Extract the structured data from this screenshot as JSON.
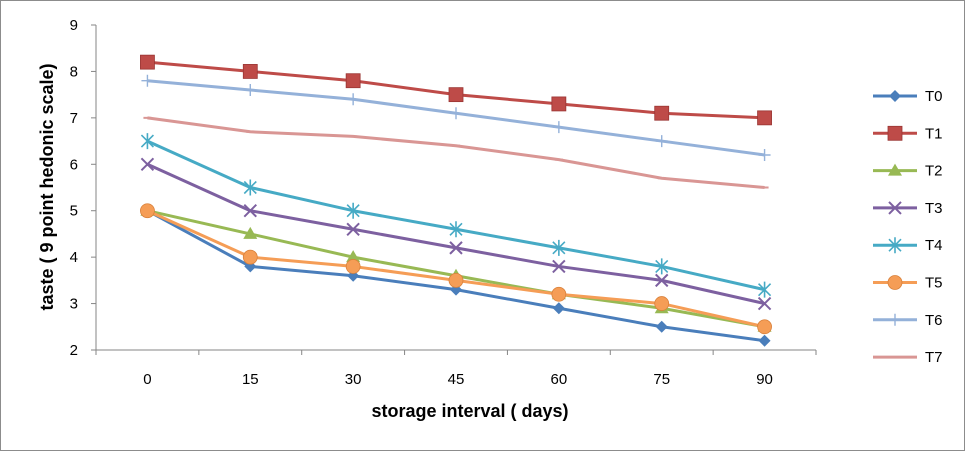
{
  "chart_data": {
    "type": "line",
    "title": "",
    "xlabel": "storage interval ( days)",
    "ylabel": "taste ( 9 point hedonic scale)",
    "x": [
      0,
      15,
      30,
      45,
      60,
      75,
      90
    ],
    "x_tick_labels": [
      "0",
      "15",
      "30",
      "45",
      "60",
      "75",
      "90"
    ],
    "ylim": [
      2,
      9
    ],
    "y_ticks": [
      2,
      3,
      4,
      5,
      6,
      7,
      8,
      9
    ],
    "grid": false,
    "legend_position": "right",
    "series": [
      {
        "name": "T0",
        "color": "#4a7ebb",
        "marker": "diamond",
        "values": [
          5.0,
          3.8,
          3.6,
          3.3,
          2.9,
          2.5,
          2.2
        ]
      },
      {
        "name": "T1",
        "color": "#be4b48",
        "marker": "square",
        "values": [
          8.2,
          8.0,
          7.8,
          7.5,
          7.3,
          7.1,
          7.0
        ]
      },
      {
        "name": "T2",
        "color": "#98b954",
        "marker": "triangle",
        "values": [
          5.0,
          4.5,
          4.0,
          3.6,
          3.2,
          2.9,
          2.5
        ]
      },
      {
        "name": "T3",
        "color": "#7d60a0",
        "marker": "x",
        "values": [
          6.0,
          5.0,
          4.6,
          4.2,
          3.8,
          3.5,
          3.0
        ]
      },
      {
        "name": "T4",
        "color": "#46aac5",
        "marker": "star",
        "values": [
          6.5,
          5.5,
          5.0,
          4.6,
          4.2,
          3.8,
          3.3
        ]
      },
      {
        "name": "T5",
        "color": "#f59d56",
        "marker": "circle",
        "values": [
          5.0,
          4.0,
          3.8,
          3.5,
          3.2,
          3.0,
          2.5
        ]
      },
      {
        "name": "T6",
        "color": "#94b1d9",
        "marker": "plus",
        "values": [
          7.8,
          7.6,
          7.4,
          7.1,
          6.8,
          6.5,
          6.2
        ]
      },
      {
        "name": "T7",
        "color": "#d99694",
        "marker": "dash",
        "values": [
          7.0,
          6.7,
          6.6,
          6.4,
          6.1,
          5.7,
          5.5
        ]
      }
    ]
  }
}
